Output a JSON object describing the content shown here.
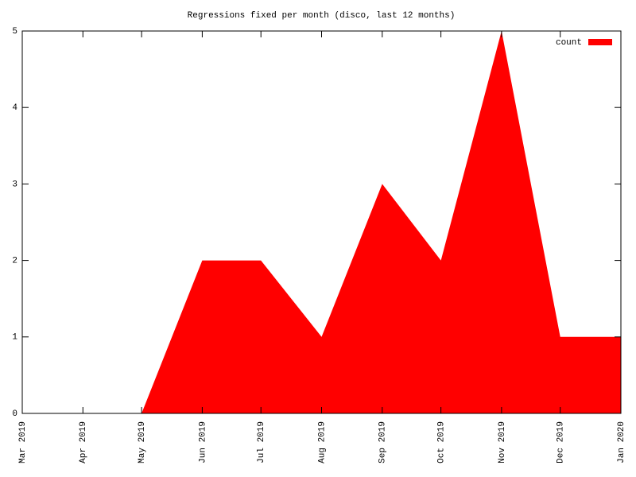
{
  "chart_data": {
    "type": "area",
    "title": "Regressions fixed per month (disco, last 12 months)",
    "x": [
      "Mar 2019",
      "Apr 2019",
      "May 2019",
      "Jun 2019",
      "Jul 2019",
      "Aug 2019",
      "Sep 2019",
      "Oct 2019",
      "Nov 2019",
      "Dec 2019",
      "Jan 2020"
    ],
    "series": [
      {
        "name": "count",
        "color": "#ff0000",
        "values": [
          0,
          0,
          0,
          2,
          2,
          1,
          3,
          2,
          5,
          1,
          1
        ]
      }
    ],
    "xlim": [
      "Mar 2019",
      "Jan 2020"
    ],
    "xticks": [
      "Mar 2019",
      "Apr 2019",
      "May 2019",
      "Jun 2019",
      "Jul 2019",
      "Aug 2019",
      "Sep 2019",
      "Oct 2019",
      "Nov 2019",
      "Dec 2019",
      "Jan 2020"
    ],
    "ylim": [
      0,
      5
    ],
    "yticks": [
      0,
      1,
      2,
      3,
      4,
      5
    ],
    "grid": false,
    "legend": "top-right"
  }
}
